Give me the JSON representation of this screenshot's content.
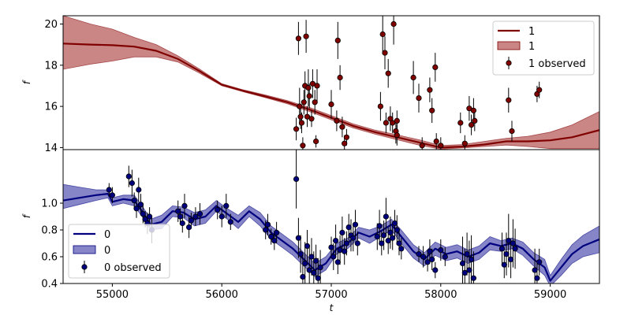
{
  "chart_data": [
    {
      "type": "line",
      "xlabel": "",
      "ylabel": "f",
      "xlim": [
        54550,
        59450
      ],
      "ylim": [
        13.9,
        20.4
      ],
      "yticks": [
        14,
        16,
        18,
        20
      ],
      "show_xticklabels": false,
      "legend_position": "upper right",
      "colors": {
        "line": "#800000",
        "band": "#b85c5c",
        "marker": "#800000"
      },
      "legend": {
        "line_label": "1",
        "band_label": "1",
        "obs_label": "1 observed"
      },
      "series": [
        {
          "x": [
            54550,
            54800,
            55000,
            55200,
            55400,
            55600,
            55800,
            56000,
            56200,
            56400,
            56600,
            56800,
            57000,
            57200,
            57400,
            57600,
            57800,
            58000,
            58200,
            58400,
            58600,
            58800,
            59000,
            59200,
            59450
          ],
          "mean": [
            19.05,
            19.0,
            18.97,
            18.9,
            18.7,
            18.3,
            17.7,
            17.05,
            16.75,
            16.48,
            16.2,
            15.85,
            15.45,
            15.05,
            14.75,
            14.5,
            14.25,
            14.0,
            14.05,
            14.15,
            14.3,
            14.3,
            14.35,
            14.5,
            14.85
          ],
          "lower": [
            17.8,
            18.05,
            18.2,
            18.4,
            18.4,
            18.15,
            17.6,
            17.0,
            16.7,
            16.42,
            16.12,
            15.75,
            15.35,
            14.95,
            14.65,
            14.38,
            14.12,
            13.92,
            13.98,
            14.05,
            14.12,
            14.05,
            13.95,
            13.95,
            13.95
          ],
          "upper": [
            20.4,
            20.0,
            19.75,
            19.35,
            19.0,
            18.45,
            17.8,
            17.1,
            16.8,
            16.55,
            16.28,
            15.95,
            15.55,
            15.15,
            14.85,
            14.62,
            14.38,
            14.1,
            14.15,
            14.3,
            14.45,
            14.55,
            14.75,
            15.1,
            15.75
          ]
        }
      ],
      "observed": {
        "x": [
          56680,
          56700,
          56710,
          56720,
          56730,
          56740,
          56750,
          56760,
          56770,
          56780,
          56790,
          56800,
          56820,
          56830,
          56850,
          56860,
          56870,
          57000,
          57050,
          57060,
          57080,
          57100,
          57120,
          57140,
          57450,
          57470,
          57490,
          57500,
          57520,
          57540,
          57560,
          57570,
          57590,
          57600,
          57600,
          57750,
          57800,
          57830,
          57900,
          57920,
          57950,
          57960,
          58000,
          58180,
          58220,
          58260,
          58280,
          58300,
          58310,
          58620,
          58650,
          58880,
          58900
        ],
        "y": [
          14.9,
          19.3,
          16.0,
          15.5,
          15.2,
          14.1,
          16.2,
          17.0,
          19.4,
          15.5,
          16.9,
          16.5,
          15.4,
          17.1,
          16.2,
          14.3,
          17.0,
          16.1,
          15.3,
          19.2,
          17.4,
          15.0,
          14.2,
          14.5,
          16.0,
          19.5,
          18.6,
          15.2,
          17.6,
          15.4,
          15.2,
          20.0,
          14.8,
          15.3,
          14.6,
          17.4,
          16.4,
          14.1,
          16.8,
          15.8,
          17.9,
          14.3,
          14.1,
          15.2,
          14.2,
          15.9,
          15.1,
          15.8,
          15.3,
          16.3,
          14.8,
          16.6,
          16.8
        ],
        "err": [
          0.55,
          0.8,
          0.9,
          0.6,
          0.5,
          0.4,
          0.6,
          0.7,
          0.8,
          0.5,
          0.9,
          0.6,
          0.4,
          0.7,
          0.6,
          0.3,
          0.8,
          0.7,
          0.5,
          0.9,
          0.6,
          0.5,
          0.4,
          0.4,
          0.7,
          0.9,
          0.8,
          0.5,
          0.7,
          0.6,
          0.5,
          1.0,
          0.6,
          0.5,
          0.5,
          0.8,
          0.7,
          0.4,
          0.6,
          0.6,
          0.7,
          0.4,
          0.4,
          0.5,
          0.4,
          0.6,
          0.5,
          0.6,
          0.5,
          0.6,
          0.5,
          0.4,
          0.4
        ]
      }
    },
    {
      "type": "line",
      "xlabel": "t",
      "ylabel": "f",
      "xlim": [
        54550,
        59450
      ],
      "ylim": [
        0.4,
        1.4
      ],
      "yticks": [
        0.4,
        0.6,
        0.8,
        1.0
      ],
      "ytick_labels": [
        "0.4",
        "0.6",
        "0.8",
        "1.0"
      ],
      "xticks": [
        55000,
        56000,
        57000,
        58000,
        59000
      ],
      "xtick_labels": [
        "55000",
        "56000",
        "57000",
        "58000",
        "59000"
      ],
      "show_xticklabels": true,
      "legend_position": "lower left",
      "colors": {
        "line": "#00007f",
        "band": "#5c5cb5",
        "marker": "#00007f"
      },
      "legend": {
        "line_label": "0",
        "band_label": "0",
        "obs_label": "0 observed"
      },
      "series": [
        {
          "x": [
            54550,
            54700,
            54850,
            54960,
            55000,
            55100,
            55200,
            55280,
            55350,
            55450,
            55550,
            55650,
            55750,
            55850,
            55950,
            56050,
            56150,
            56250,
            56350,
            56450,
            56550,
            56650,
            56750,
            56850,
            56950,
            57050,
            57150,
            57250,
            57350,
            57450,
            57550,
            57650,
            57750,
            57850,
            57950,
            58050,
            58150,
            58250,
            58350,
            58450,
            58550,
            58650,
            58750,
            58850,
            58950,
            59000,
            59100,
            59200,
            59300,
            59450
          ],
          "mean": [
            1.02,
            1.04,
            1.06,
            1.07,
            1.01,
            1.03,
            1.02,
            0.93,
            0.84,
            0.86,
            0.94,
            0.93,
            0.88,
            0.9,
            0.98,
            0.92,
            0.86,
            0.94,
            0.88,
            0.78,
            0.72,
            0.66,
            0.58,
            0.5,
            0.55,
            0.66,
            0.7,
            0.78,
            0.75,
            0.79,
            0.84,
            0.74,
            0.64,
            0.58,
            0.66,
            0.62,
            0.64,
            0.6,
            0.63,
            0.7,
            0.68,
            0.7,
            0.66,
            0.58,
            0.52,
            0.42,
            0.52,
            0.62,
            0.68,
            0.73
          ],
          "lower": [
            0.96,
            0.99,
            1.02,
            1.04,
            0.98,
            1.0,
            0.98,
            0.89,
            0.8,
            0.81,
            0.9,
            0.89,
            0.83,
            0.85,
            0.94,
            0.88,
            0.81,
            0.9,
            0.83,
            0.73,
            0.67,
            0.61,
            0.53,
            0.45,
            0.5,
            0.62,
            0.66,
            0.74,
            0.7,
            0.75,
            0.8,
            0.69,
            0.59,
            0.53,
            0.61,
            0.57,
            0.59,
            0.55,
            0.58,
            0.65,
            0.64,
            0.66,
            0.61,
            0.53,
            0.46,
            0.38,
            0.46,
            0.55,
            0.6,
            0.63
          ],
          "upper": [
            1.14,
            1.12,
            1.1,
            1.1,
            1.04,
            1.06,
            1.06,
            0.97,
            0.88,
            0.91,
            0.98,
            0.97,
            0.93,
            0.95,
            1.02,
            0.96,
            0.91,
            0.98,
            0.93,
            0.83,
            0.77,
            0.71,
            0.63,
            0.55,
            0.6,
            0.7,
            0.74,
            0.82,
            0.8,
            0.83,
            0.88,
            0.79,
            0.69,
            0.63,
            0.71,
            0.67,
            0.69,
            0.65,
            0.68,
            0.75,
            0.72,
            0.74,
            0.71,
            0.63,
            0.58,
            0.46,
            0.58,
            0.69,
            0.76,
            0.83
          ]
        }
      ],
      "observed": {
        "x": [
          54970,
          55000,
          55150,
          55180,
          55200,
          55220,
          55240,
          55260,
          55280,
          55300,
          55320,
          55340,
          55360,
          55600,
          55620,
          55640,
          55660,
          55700,
          55720,
          55760,
          55800,
          55960,
          56000,
          56040,
          56080,
          56400,
          56420,
          56450,
          56480,
          56500,
          56680,
          56700,
          56720,
          56740,
          56760,
          56780,
          56800,
          56820,
          56840,
          56860,
          56880,
          56900,
          57000,
          57020,
          57040,
          57060,
          57080,
          57100,
          57120,
          57140,
          57160,
          57180,
          57200,
          57220,
          57240,
          57420,
          57440,
          57460,
          57480,
          57500,
          57520,
          57540,
          57560,
          57580,
          57600,
          57620,
          57640,
          57800,
          57840,
          57880,
          57900,
          57920,
          57950,
          58000,
          58040,
          58200,
          58220,
          58240,
          58260,
          58280,
          58300,
          58560,
          58580,
          58600,
          58620,
          58640,
          58660,
          58680,
          58860,
          58880,
          58900
        ],
        "y": [
          1.1,
          1.06,
          1.2,
          1.15,
          1.02,
          0.96,
          1.1,
          0.99,
          0.92,
          0.88,
          0.85,
          0.9,
          0.8,
          0.94,
          0.9,
          0.85,
          0.98,
          0.82,
          0.87,
          0.9,
          0.92,
          0.95,
          0.9,
          0.98,
          0.86,
          0.8,
          0.84,
          0.75,
          0.72,
          0.78,
          1.18,
          0.74,
          0.62,
          0.45,
          0.55,
          0.68,
          0.5,
          0.6,
          0.48,
          0.57,
          0.44,
          0.52,
          0.67,
          0.6,
          0.72,
          0.56,
          0.65,
          0.78,
          0.64,
          0.7,
          0.82,
          0.76,
          0.74,
          0.84,
          0.7,
          0.75,
          0.83,
          0.7,
          0.76,
          0.9,
          0.72,
          0.78,
          0.74,
          0.85,
          0.8,
          0.7,
          0.66,
          0.62,
          0.6,
          0.56,
          0.64,
          0.58,
          0.5,
          0.65,
          0.6,
          0.55,
          0.48,
          0.62,
          0.5,
          0.58,
          0.44,
          0.66,
          0.54,
          0.62,
          0.72,
          0.58,
          0.7,
          0.66,
          0.5,
          0.44,
          0.56
        ],
        "err": [
          0.05,
          0.06,
          0.08,
          0.1,
          0.06,
          0.07,
          0.09,
          0.08,
          0.07,
          0.06,
          0.08,
          0.07,
          0.1,
          0.08,
          0.06,
          0.07,
          0.09,
          0.08,
          0.06,
          0.07,
          0.08,
          0.07,
          0.08,
          0.09,
          0.06,
          0.07,
          0.08,
          0.06,
          0.07,
          0.08,
          0.22,
          0.15,
          0.14,
          0.18,
          0.16,
          0.12,
          0.18,
          0.14,
          0.16,
          0.12,
          0.15,
          0.13,
          0.08,
          0.1,
          0.12,
          0.09,
          0.11,
          0.12,
          0.1,
          0.09,
          0.1,
          0.12,
          0.1,
          0.11,
          0.09,
          0.1,
          0.12,
          0.09,
          0.11,
          0.14,
          0.1,
          0.12,
          0.09,
          0.1,
          0.11,
          0.09,
          0.08,
          0.06,
          0.08,
          0.07,
          0.09,
          0.08,
          0.06,
          0.08,
          0.07,
          0.2,
          0.18,
          0.16,
          0.22,
          0.18,
          0.2,
          0.12,
          0.1,
          0.16,
          0.2,
          0.14,
          0.18,
          0.15,
          0.16,
          0.12,
          0.1
        ]
      }
    }
  ]
}
